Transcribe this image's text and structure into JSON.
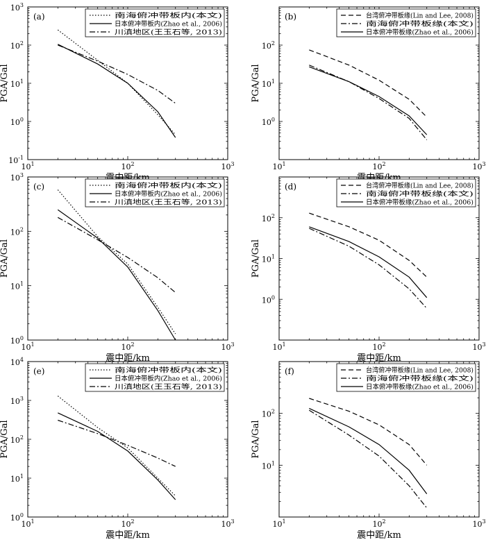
{
  "chart_data": [
    {
      "type": "line",
      "panel_label": "(a)",
      "xscale": "log",
      "yscale": "log",
      "xlim": [
        10,
        1000
      ],
      "ylim": [
        0.1,
        1000
      ],
      "xlabel": "震中距/km",
      "ylabel": "PGA/Gal",
      "xticks": [
        {
          "base": "10",
          "exp": "1"
        },
        {
          "base": "10",
          "exp": "2"
        },
        {
          "base": "10",
          "exp": "3"
        }
      ],
      "yticks": [
        {
          "base": "10",
          "exp": "-1"
        },
        {
          "base": "10",
          "exp": "0"
        },
        {
          "base": "10",
          "exp": "1"
        },
        {
          "base": "10",
          "exp": "2"
        },
        {
          "base": "10",
          "exp": "3"
        }
      ],
      "legend_position": "top-right",
      "series": [
        {
          "name": "南海俯冲带板内(本文)",
          "style": "dotted",
          "points": [
            [
              20,
              250
            ],
            [
              50,
              40
            ],
            [
              100,
              10
            ],
            [
              200,
              1.5
            ],
            [
              300,
              0.45
            ]
          ]
        },
        {
          "name": "日本俯冲带板内(Zhao et al., 2006)",
          "style": "solid",
          "points": [
            [
              20,
              105
            ],
            [
              50,
              32
            ],
            [
              100,
              10
            ],
            [
              200,
              1.8
            ],
            [
              300,
              0.38
            ]
          ]
        },
        {
          "name": "川滇地区(王玉石等, 2013)",
          "style": "dashdot",
          "points": [
            [
              20,
              100
            ],
            [
              50,
              38
            ],
            [
              100,
              17
            ],
            [
              200,
              6.5
            ],
            [
              300,
              3
            ]
          ]
        }
      ]
    },
    {
      "type": "line",
      "panel_label": "(b)",
      "xscale": "log",
      "yscale": "log",
      "xlim": [
        10,
        1000
      ],
      "ylim": [
        0.1,
        1000
      ],
      "xlabel": "震中距/km",
      "ylabel": "PGA/Gal",
      "xticks": [
        {
          "base": "10",
          "exp": "1"
        },
        {
          "base": "10",
          "exp": "2"
        },
        {
          "base": "10",
          "exp": "3"
        }
      ],
      "yticks": [
        {
          "base": "10",
          "exp": "0"
        },
        {
          "base": "10",
          "exp": "1"
        },
        {
          "base": "10",
          "exp": "2"
        }
      ],
      "legend_position": "top-right",
      "series": [
        {
          "name": "台湾俯冲带板缘(Lin and Lee, 2008)",
          "style": "dashed",
          "points": [
            [
              20,
              75
            ],
            [
              50,
              30
            ],
            [
              100,
              12
            ],
            [
              200,
              3.8
            ],
            [
              300,
              1.3
            ]
          ]
        },
        {
          "name": "南海俯冲带板缘(本文)",
          "style": "dashdot",
          "points": [
            [
              20,
              30
            ],
            [
              50,
              11
            ],
            [
              100,
              4
            ],
            [
              200,
              1.2
            ],
            [
              300,
              0.33
            ]
          ]
        },
        {
          "name": "日本俯冲带板缘(Zhao et al., 2006)",
          "style": "solid",
          "points": [
            [
              20,
              27
            ],
            [
              50,
              11
            ],
            [
              100,
              4.5
            ],
            [
              200,
              1.4
            ],
            [
              300,
              0.45
            ]
          ]
        }
      ]
    },
    {
      "type": "line",
      "panel_label": "(c)",
      "xscale": "log",
      "yscale": "log",
      "xlim": [
        10,
        1000
      ],
      "ylim": [
        1,
        1000
      ],
      "xlabel": "震中距/km",
      "ylabel": "PGA/Gal",
      "xticks": [
        {
          "base": "10",
          "exp": "1"
        },
        {
          "base": "10",
          "exp": "2"
        },
        {
          "base": "10",
          "exp": "3"
        }
      ],
      "yticks": [
        {
          "base": "10",
          "exp": "0"
        },
        {
          "base": "10",
          "exp": "1"
        },
        {
          "base": "10",
          "exp": "2"
        },
        {
          "base": "10",
          "exp": "3"
        }
      ],
      "legend_position": "top-right",
      "series": [
        {
          "name": "南海俯冲带板内(本文)",
          "style": "dotted",
          "points": [
            [
              20,
              580
            ],
            [
              50,
              80
            ],
            [
              100,
              25
            ],
            [
              200,
              4
            ],
            [
              300,
              1.3
            ]
          ]
        },
        {
          "name": "日本俯冲带板内(Zhao et al., 2006)",
          "style": "solid",
          "points": [
            [
              20,
              250
            ],
            [
              50,
              75
            ],
            [
              100,
              22
            ],
            [
              200,
              3.5
            ],
            [
              300,
              1
            ]
          ]
        },
        {
          "name": "川滇地区(王玉石等, 2013)",
          "style": "dashdot",
          "points": [
            [
              20,
              180
            ],
            [
              50,
              70
            ],
            [
              100,
              33
            ],
            [
              200,
              14
            ],
            [
              300,
              7.5
            ]
          ]
        }
      ]
    },
    {
      "type": "line",
      "panel_label": "(d)",
      "xscale": "log",
      "yscale": "log",
      "xlim": [
        10,
        1000
      ],
      "ylim": [
        0.1,
        1000
      ],
      "xlabel": "震中距/km",
      "ylabel": "PGA/Gal",
      "xticks": [
        {
          "base": "10",
          "exp": "1"
        },
        {
          "base": "10",
          "exp": "2"
        },
        {
          "base": "10",
          "exp": "3"
        }
      ],
      "yticks": [
        {
          "base": "10",
          "exp": "0"
        },
        {
          "base": "10",
          "exp": "1"
        },
        {
          "base": "10",
          "exp": "2"
        }
      ],
      "legend_position": "top-right",
      "series": [
        {
          "name": "台湾俯冲带板缘(Lin and Lee, 2008)",
          "style": "dashed",
          "points": [
            [
              20,
              130
            ],
            [
              50,
              60
            ],
            [
              100,
              28
            ],
            [
              200,
              9
            ],
            [
              300,
              3.5
            ]
          ]
        },
        {
          "name": "南海俯冲带板缘(本文)",
          "style": "dashdot",
          "points": [
            [
              20,
              55
            ],
            [
              50,
              20
            ],
            [
              100,
              7
            ],
            [
              200,
              1.8
            ],
            [
              300,
              0.6
            ]
          ]
        },
        {
          "name": "日本俯冲带板缘(Zhao et al., 2006)",
          "style": "solid",
          "points": [
            [
              20,
              60
            ],
            [
              50,
              26
            ],
            [
              100,
              11
            ],
            [
              200,
              3.5
            ],
            [
              300,
              1.1
            ]
          ]
        }
      ]
    },
    {
      "type": "line",
      "panel_label": "(e)",
      "xscale": "log",
      "yscale": "log",
      "xlim": [
        10,
        1000
      ],
      "ylim": [
        1,
        10000
      ],
      "xlabel": "震中距/km",
      "ylabel": "PGA/Gal",
      "xticks": [
        {
          "base": "10",
          "exp": "1"
        },
        {
          "base": "10",
          "exp": "2"
        },
        {
          "base": "10",
          "exp": "3"
        }
      ],
      "yticks": [
        {
          "base": "10",
          "exp": "0"
        },
        {
          "base": "10",
          "exp": "1"
        },
        {
          "base": "10",
          "exp": "2"
        },
        {
          "base": "10",
          "exp": "3"
        },
        {
          "base": "10",
          "exp": "4"
        }
      ],
      "legend_position": "top-right",
      "series": [
        {
          "name": "南海俯冲带板内(本文)",
          "style": "dotted",
          "points": [
            [
              20,
              1300
            ],
            [
              50,
              200
            ],
            [
              100,
              60
            ],
            [
              200,
              10
            ],
            [
              300,
              3.5
            ]
          ]
        },
        {
          "name": "日本俯冲带板内(Zhao et al., 2006)",
          "style": "solid",
          "points": [
            [
              20,
              480
            ],
            [
              50,
              160
            ],
            [
              100,
              50
            ],
            [
              200,
              9
            ],
            [
              300,
              2.8
            ]
          ]
        },
        {
          "name": "川滇地区(王玉石等, 2013)",
          "style": "dashdot",
          "points": [
            [
              20,
              310
            ],
            [
              50,
              140
            ],
            [
              100,
              70
            ],
            [
              200,
              33
            ],
            [
              300,
              20
            ]
          ]
        }
      ]
    },
    {
      "type": "line",
      "panel_label": "(f)",
      "xscale": "log",
      "yscale": "log",
      "xlim": [
        10,
        1000
      ],
      "ylim": [
        1,
        1000
      ],
      "xlabel": "震中距/km",
      "ylabel": "PGA/Gal",
      "xticks": [
        {
          "base": "10",
          "exp": "1"
        },
        {
          "base": "10",
          "exp": "2"
        },
        {
          "base": "10",
          "exp": "3"
        }
      ],
      "yticks": [
        {
          "base": "10",
          "exp": "1"
        },
        {
          "base": "10",
          "exp": "2"
        }
      ],
      "legend_position": "top-right",
      "series": [
        {
          "name": "台湾俯冲带板缘(Lin and Lee, 2008)",
          "style": "dashed",
          "points": [
            [
              20,
              195
            ],
            [
              50,
              110
            ],
            [
              100,
              60
            ],
            [
              200,
              25
            ],
            [
              300,
              10
            ]
          ]
        },
        {
          "name": "南海俯冲带板缘(本文)",
          "style": "dashdot",
          "points": [
            [
              20,
              115
            ],
            [
              50,
              38
            ],
            [
              100,
              15
            ],
            [
              200,
              4
            ],
            [
              300,
              1.5
            ]
          ]
        },
        {
          "name": "日本俯冲带板缘(Zhao et al., 2006)",
          "style": "solid",
          "points": [
            [
              20,
              125
            ],
            [
              50,
              55
            ],
            [
              100,
              25
            ],
            [
              200,
              8
            ],
            [
              300,
              2.8
            ]
          ]
        }
      ]
    }
  ]
}
